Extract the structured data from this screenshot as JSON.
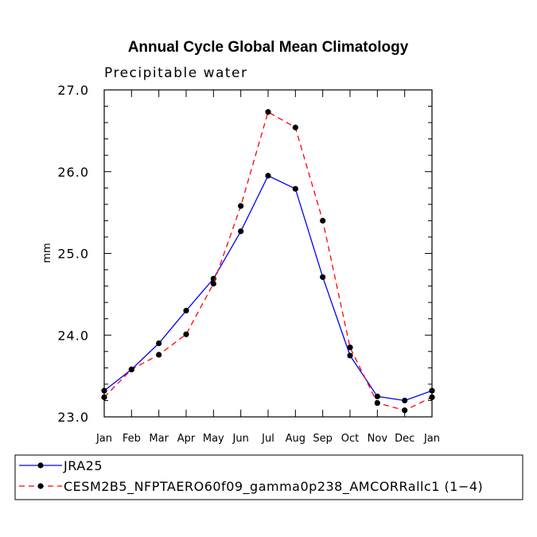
{
  "chart_data": {
    "type": "line",
    "title": "Annual Cycle Global Mean Climatology",
    "subtitle": "Precipitable water",
    "xlabel": "",
    "ylabel": "mm",
    "categories": [
      "Jan",
      "Feb",
      "Mar",
      "Apr",
      "May",
      "Jun",
      "Jul",
      "Aug",
      "Sep",
      "Oct",
      "Nov",
      "Dec",
      "Jan"
    ],
    "ylim": [
      23.0,
      27.0
    ],
    "yticks": [
      23.0,
      24.0,
      25.0,
      26.0,
      27.0
    ],
    "ytick_labels": [
      "23.0",
      "24.0",
      "25.0",
      "26.0",
      "27.0"
    ],
    "grid": false,
    "legend_position": "bottom",
    "series": [
      {
        "name": "JRA25",
        "color": "#0000ff",
        "dash": "solid",
        "values": [
          23.32,
          23.58,
          23.9,
          24.3,
          24.69,
          25.27,
          25.95,
          25.79,
          24.71,
          23.75,
          23.25,
          23.2,
          23.32
        ]
      },
      {
        "name": "CESM2B5_NFPTAERO60f09_gamma0p238_AMCORRallc1 (1−4)",
        "color": "#ff0000",
        "dash": "dashed",
        "values": [
          23.24,
          23.58,
          23.76,
          24.01,
          24.63,
          25.58,
          26.73,
          26.54,
          25.4,
          23.85,
          23.17,
          23.08,
          23.24
        ]
      }
    ]
  }
}
